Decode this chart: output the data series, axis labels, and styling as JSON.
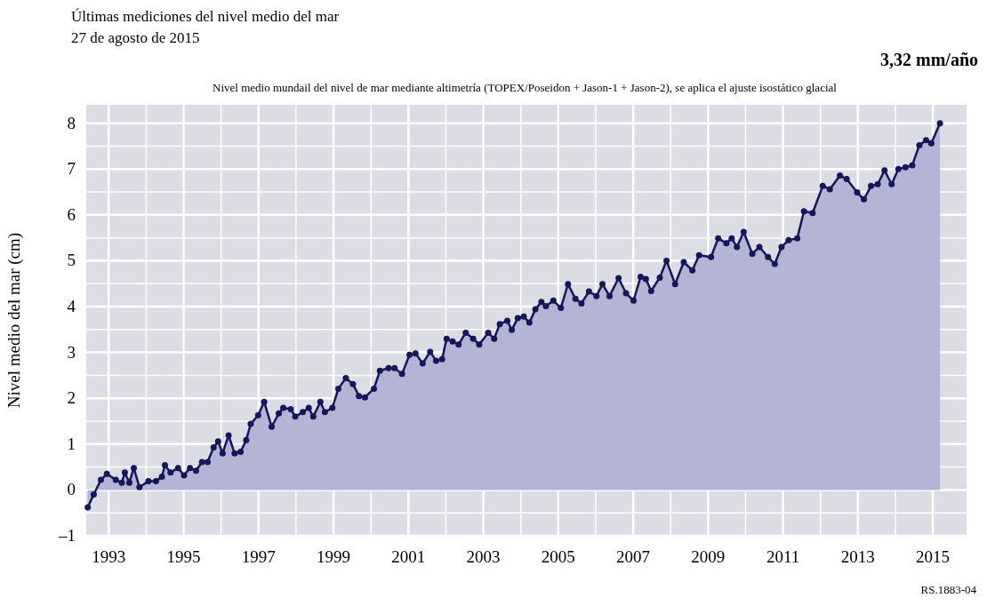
{
  "chart_data": {
    "type": "area",
    "title": "Últimas mediciones del nivel medio del mar",
    "subtitle": "27 de agosto de 2015",
    "ylabel": "Nivel medio del mar (cm)",
    "annotations": [
      "3,32 mm/año",
      "Nivel medio mundail del nivel de mar mediante altimetría (TOPEX/Poseidon + Jason-1 + Jason-2),  se aplica el  ajuste isostático glacial",
      "RS.1883-04"
    ],
    "xlim": [
      1992.4,
      2015.9
    ],
    "ylim": [
      -1,
      8.4
    ],
    "xticks": [
      1993,
      {
        "value": 1994,
        "label": null
      },
      1995,
      {
        "value": 1996,
        "label": null
      },
      1997,
      {
        "value": 1998,
        "label": null
      },
      1999,
      {
        "value": 2000,
        "label": null
      },
      2001,
      {
        "value": 2002,
        "label": null
      },
      2003,
      {
        "value": 2004,
        "label": null
      },
      2005,
      {
        "value": 2006,
        "label": null
      },
      2007,
      {
        "value": 2008,
        "label": null
      },
      2009,
      {
        "value": 2010,
        "label": null
      },
      2011,
      {
        "value": 2012,
        "label": null
      },
      2013,
      {
        "value": 2014,
        "label": null
      },
      2015
    ],
    "yticks": [
      {
        "value": -1,
        "label": "–1"
      },
      {
        "value": -0.5,
        "label": null
      },
      0,
      {
        "value": 0.5,
        "label": null
      },
      1,
      {
        "value": 1.5,
        "label": null
      },
      2,
      {
        "value": 2.5,
        "label": null
      },
      3,
      {
        "value": 3.5,
        "label": null
      },
      4,
      {
        "value": 4.5,
        "label": null
      },
      5,
      {
        "value": 5.5,
        "label": null
      },
      6,
      {
        "value": 6.5,
        "label": null
      },
      7,
      {
        "value": 7.5,
        "label": null
      },
      8
    ],
    "grid": true,
    "marker": "circle",
    "series": [
      {
        "color": "#b4b4d4",
        "x": [
          1992.44,
          1992.6,
          1992.79,
          1992.95,
          1993.19,
          1993.35,
          1993.43,
          1993.55,
          1993.67,
          1993.82,
          1994.06,
          1994.26,
          1994.42,
          1994.5,
          1994.65,
          1994.85,
          1995.01,
          1995.17,
          1995.33,
          1995.49,
          1995.64,
          1995.8,
          1995.92,
          1996.04,
          1996.2,
          1996.36,
          1996.52,
          1996.67,
          1996.79,
          1996.99,
          1997.15,
          1997.35,
          1997.54,
          1997.66,
          1997.86,
          1997.98,
          1998.18,
          1998.34,
          1998.46,
          1998.65,
          1998.77,
          1998.97,
          1999.13,
          1999.33,
          1999.52,
          1999.68,
          1999.84,
          2000.08,
          2000.24,
          2000.47,
          2000.63,
          2000.83,
          2001.03,
          2001.19,
          2001.38,
          2001.58,
          2001.74,
          2001.9,
          2002.02,
          2002.18,
          2002.34,
          2002.53,
          2002.73,
          2002.89,
          2003.13,
          2003.29,
          2003.44,
          2003.64,
          2003.76,
          2003.92,
          2004.08,
          2004.23,
          2004.39,
          2004.55,
          2004.67,
          2004.87,
          2005.07,
          2005.26,
          2005.46,
          2005.62,
          2005.82,
          2006.02,
          2006.18,
          2006.37,
          2006.61,
          2006.81,
          2007.01,
          2007.2,
          2007.34,
          2007.48,
          2007.71,
          2007.89,
          2008.12,
          2008.35,
          2008.58,
          2008.76,
          2009.08,
          2009.27,
          2009.49,
          2009.63,
          2009.77,
          2009.95,
          2010.18,
          2010.37,
          2010.6,
          2010.78,
          2010.96,
          2011.15,
          2011.38,
          2011.56,
          2011.79,
          2012.06,
          2012.25,
          2012.52,
          2012.7,
          2012.98,
          2013.16,
          2013.35,
          2013.53,
          2013.71,
          2013.9,
          2014.08,
          2014.27,
          2014.45,
          2014.64,
          2014.82,
          2014.96,
          2015.19
        ],
        "values": [
          -0.38,
          -0.1,
          0.22,
          0.35,
          0.22,
          0.16,
          0.38,
          0.16,
          0.48,
          0.06,
          0.19,
          0.19,
          0.29,
          0.54,
          0.38,
          0.48,
          0.32,
          0.48,
          0.42,
          0.61,
          0.61,
          0.93,
          1.06,
          0.8,
          1.19,
          0.8,
          0.83,
          1.09,
          1.44,
          1.63,
          1.92,
          1.38,
          1.67,
          1.79,
          1.76,
          1.6,
          1.7,
          1.79,
          1.6,
          1.92,
          1.7,
          1.79,
          2.21,
          2.44,
          2.31,
          2.05,
          2.02,
          2.21,
          2.6,
          2.66,
          2.66,
          2.53,
          2.95,
          2.98,
          2.76,
          3.01,
          2.82,
          2.85,
          3.3,
          3.24,
          3.17,
          3.43,
          3.3,
          3.17,
          3.43,
          3.3,
          3.62,
          3.69,
          3.49,
          3.75,
          3.78,
          3.65,
          3.94,
          4.1,
          4.01,
          4.13,
          3.97,
          4.49,
          4.17,
          4.07,
          4.33,
          4.23,
          4.49,
          4.23,
          4.62,
          4.29,
          4.13,
          4.65,
          4.6,
          4.34,
          4.63,
          5.0,
          4.49,
          4.97,
          4.79,
          5.12,
          5.08,
          5.49,
          5.38,
          5.49,
          5.3,
          5.63,
          5.15,
          5.3,
          5.08,
          4.93,
          5.3,
          5.45,
          5.49,
          6.08,
          6.04,
          6.63,
          6.56,
          6.86,
          6.78,
          6.49,
          6.34,
          6.63,
          6.67,
          6.97,
          6.67,
          7.0,
          7.04,
          7.08,
          7.52,
          7.63,
          7.56,
          8.0
        ]
      }
    ]
  }
}
